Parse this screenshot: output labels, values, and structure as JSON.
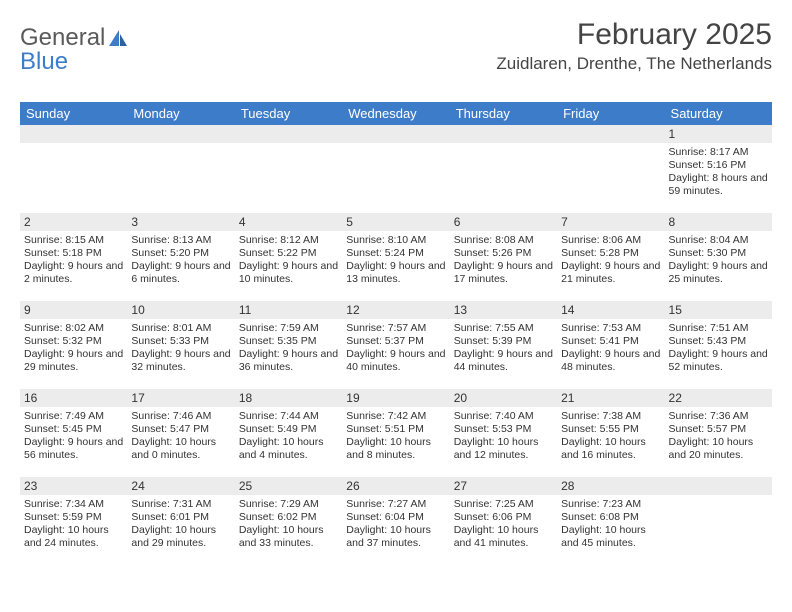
{
  "header": {
    "logo_part1": "General",
    "logo_part2": "Blue",
    "month_title": "February 2025",
    "location": "Zuidlaren, Drenthe, The Netherlands"
  },
  "colors": {
    "header_bg": "#3d7cc9",
    "header_text": "#ffffff",
    "daynum_bg": "#ececec",
    "text": "#333333",
    "logo_gray": "#5a5a5a",
    "logo_blue": "#3d7cc9"
  },
  "day_names": [
    "Sunday",
    "Monday",
    "Tuesday",
    "Wednesday",
    "Thursday",
    "Friday",
    "Saturday"
  ],
  "weeks": [
    [
      {
        "day": "",
        "sunrise": "",
        "sunset": "",
        "daylight": ""
      },
      {
        "day": "",
        "sunrise": "",
        "sunset": "",
        "daylight": ""
      },
      {
        "day": "",
        "sunrise": "",
        "sunset": "",
        "daylight": ""
      },
      {
        "day": "",
        "sunrise": "",
        "sunset": "",
        "daylight": ""
      },
      {
        "day": "",
        "sunrise": "",
        "sunset": "",
        "daylight": ""
      },
      {
        "day": "",
        "sunrise": "",
        "sunset": "",
        "daylight": ""
      },
      {
        "day": "1",
        "sunrise": "Sunrise: 8:17 AM",
        "sunset": "Sunset: 5:16 PM",
        "daylight": "Daylight: 8 hours and 59 minutes."
      }
    ],
    [
      {
        "day": "2",
        "sunrise": "Sunrise: 8:15 AM",
        "sunset": "Sunset: 5:18 PM",
        "daylight": "Daylight: 9 hours and 2 minutes."
      },
      {
        "day": "3",
        "sunrise": "Sunrise: 8:13 AM",
        "sunset": "Sunset: 5:20 PM",
        "daylight": "Daylight: 9 hours and 6 minutes."
      },
      {
        "day": "4",
        "sunrise": "Sunrise: 8:12 AM",
        "sunset": "Sunset: 5:22 PM",
        "daylight": "Daylight: 9 hours and 10 minutes."
      },
      {
        "day": "5",
        "sunrise": "Sunrise: 8:10 AM",
        "sunset": "Sunset: 5:24 PM",
        "daylight": "Daylight: 9 hours and 13 minutes."
      },
      {
        "day": "6",
        "sunrise": "Sunrise: 8:08 AM",
        "sunset": "Sunset: 5:26 PM",
        "daylight": "Daylight: 9 hours and 17 minutes."
      },
      {
        "day": "7",
        "sunrise": "Sunrise: 8:06 AM",
        "sunset": "Sunset: 5:28 PM",
        "daylight": "Daylight: 9 hours and 21 minutes."
      },
      {
        "day": "8",
        "sunrise": "Sunrise: 8:04 AM",
        "sunset": "Sunset: 5:30 PM",
        "daylight": "Daylight: 9 hours and 25 minutes."
      }
    ],
    [
      {
        "day": "9",
        "sunrise": "Sunrise: 8:02 AM",
        "sunset": "Sunset: 5:32 PM",
        "daylight": "Daylight: 9 hours and 29 minutes."
      },
      {
        "day": "10",
        "sunrise": "Sunrise: 8:01 AM",
        "sunset": "Sunset: 5:33 PM",
        "daylight": "Daylight: 9 hours and 32 minutes."
      },
      {
        "day": "11",
        "sunrise": "Sunrise: 7:59 AM",
        "sunset": "Sunset: 5:35 PM",
        "daylight": "Daylight: 9 hours and 36 minutes."
      },
      {
        "day": "12",
        "sunrise": "Sunrise: 7:57 AM",
        "sunset": "Sunset: 5:37 PM",
        "daylight": "Daylight: 9 hours and 40 minutes."
      },
      {
        "day": "13",
        "sunrise": "Sunrise: 7:55 AM",
        "sunset": "Sunset: 5:39 PM",
        "daylight": "Daylight: 9 hours and 44 minutes."
      },
      {
        "day": "14",
        "sunrise": "Sunrise: 7:53 AM",
        "sunset": "Sunset: 5:41 PM",
        "daylight": "Daylight: 9 hours and 48 minutes."
      },
      {
        "day": "15",
        "sunrise": "Sunrise: 7:51 AM",
        "sunset": "Sunset: 5:43 PM",
        "daylight": "Daylight: 9 hours and 52 minutes."
      }
    ],
    [
      {
        "day": "16",
        "sunrise": "Sunrise: 7:49 AM",
        "sunset": "Sunset: 5:45 PM",
        "daylight": "Daylight: 9 hours and 56 minutes."
      },
      {
        "day": "17",
        "sunrise": "Sunrise: 7:46 AM",
        "sunset": "Sunset: 5:47 PM",
        "daylight": "Daylight: 10 hours and 0 minutes."
      },
      {
        "day": "18",
        "sunrise": "Sunrise: 7:44 AM",
        "sunset": "Sunset: 5:49 PM",
        "daylight": "Daylight: 10 hours and 4 minutes."
      },
      {
        "day": "19",
        "sunrise": "Sunrise: 7:42 AM",
        "sunset": "Sunset: 5:51 PM",
        "daylight": "Daylight: 10 hours and 8 minutes."
      },
      {
        "day": "20",
        "sunrise": "Sunrise: 7:40 AM",
        "sunset": "Sunset: 5:53 PM",
        "daylight": "Daylight: 10 hours and 12 minutes."
      },
      {
        "day": "21",
        "sunrise": "Sunrise: 7:38 AM",
        "sunset": "Sunset: 5:55 PM",
        "daylight": "Daylight: 10 hours and 16 minutes."
      },
      {
        "day": "22",
        "sunrise": "Sunrise: 7:36 AM",
        "sunset": "Sunset: 5:57 PM",
        "daylight": "Daylight: 10 hours and 20 minutes."
      }
    ],
    [
      {
        "day": "23",
        "sunrise": "Sunrise: 7:34 AM",
        "sunset": "Sunset: 5:59 PM",
        "daylight": "Daylight: 10 hours and 24 minutes."
      },
      {
        "day": "24",
        "sunrise": "Sunrise: 7:31 AM",
        "sunset": "Sunset: 6:01 PM",
        "daylight": "Daylight: 10 hours and 29 minutes."
      },
      {
        "day": "25",
        "sunrise": "Sunrise: 7:29 AM",
        "sunset": "Sunset: 6:02 PM",
        "daylight": "Daylight: 10 hours and 33 minutes."
      },
      {
        "day": "26",
        "sunrise": "Sunrise: 7:27 AM",
        "sunset": "Sunset: 6:04 PM",
        "daylight": "Daylight: 10 hours and 37 minutes."
      },
      {
        "day": "27",
        "sunrise": "Sunrise: 7:25 AM",
        "sunset": "Sunset: 6:06 PM",
        "daylight": "Daylight: 10 hours and 41 minutes."
      },
      {
        "day": "28",
        "sunrise": "Sunrise: 7:23 AM",
        "sunset": "Sunset: 6:08 PM",
        "daylight": "Daylight: 10 hours and 45 minutes."
      },
      {
        "day": "",
        "sunrise": "",
        "sunset": "",
        "daylight": ""
      }
    ]
  ]
}
